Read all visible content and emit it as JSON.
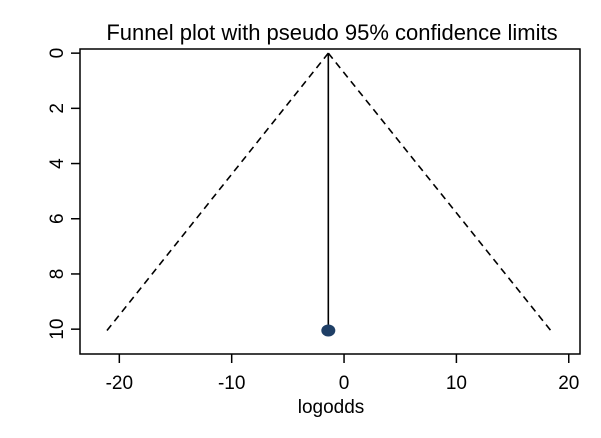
{
  "chart_data": {
    "type": "scatter",
    "title": "Funnel plot with pseudo 95% confidence limits",
    "xlabel": "logodds",
    "ylabel": "",
    "xlim": [
      -23.5,
      21.0
    ],
    "ylim": [
      10.9,
      -0.15
    ],
    "y_reversed": true,
    "x_ticks": [
      -20,
      -10,
      0,
      10,
      20
    ],
    "y_ticks": [
      0,
      2,
      4,
      6,
      8,
      10
    ],
    "x_tick_labels": [
      "-20",
      "-10",
      "0",
      "10",
      "20"
    ],
    "y_tick_labels": [
      "0",
      "2",
      "4",
      "6",
      "8",
      "10"
    ],
    "grid": false,
    "points": [
      {
        "x": -1.4,
        "y": 10.05
      }
    ],
    "vertical_line": {
      "x": -1.4,
      "y_from": 0,
      "y_to": 10.05
    },
    "funnel": {
      "apex": {
        "x": -1.4,
        "y": 0
      },
      "left_base": {
        "x": -21.1,
        "y": 10.05
      },
      "right_base": {
        "x": 18.4,
        "y": 10.05
      },
      "style": "dashed"
    },
    "colors": {
      "point": "#1f3f66",
      "line": "#000000",
      "axis": "#000000"
    }
  }
}
